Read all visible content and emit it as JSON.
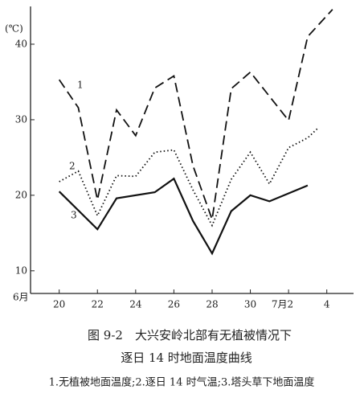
{
  "chart_data": {
    "type": "line",
    "title": "图 9-2　大兴安岭北部有无植被情况下",
    "subtitle": "逐日 14 时地面温度曲线",
    "annotations": [
      "1.无植被地面温度;2.逐日 14 时气温;3.塔头草下地面温度"
    ],
    "y_label": "(℃)",
    "x_label": "6月",
    "xlim": [
      18.5,
      35.4
    ],
    "ylim": [
      7,
      45
    ],
    "xticks": [
      20,
      22,
      24,
      26,
      28,
      30,
      {
        "value": 32,
        "label": "7月2"
      },
      {
        "value": 34,
        "label": "4"
      }
    ],
    "yticks": [
      10,
      20,
      30,
      40
    ],
    "series": [
      {
        "name": "1",
        "color": "#111",
        "style": "dashed",
        "x": [
          20,
          21,
          22,
          23,
          24,
          25,
          26,
          27,
          28,
          29,
          30,
          31,
          32,
          33,
          34.3
        ],
        "values": [
          35.3,
          31.6,
          19.4,
          31.3,
          27.9,
          34.2,
          35.8,
          23.9,
          16.8,
          34.1,
          36.3,
          33.1,
          29.9,
          41,
          44.6
        ]
      },
      {
        "name": "2",
        "color": "#111",
        "style": "dotted",
        "x": [
          20,
          21,
          22,
          23,
          24,
          25,
          26,
          27,
          28,
          29,
          30,
          31,
          32,
          33,
          33.5
        ],
        "values": [
          21.8,
          23.2,
          17.3,
          22.6,
          22.5,
          25.7,
          26,
          20.7,
          16,
          22.1,
          25.7,
          21.5,
          26.3,
          27.6,
          28.8
        ]
      },
      {
        "name": "3",
        "color": "#111",
        "style": "solid",
        "x": [
          20,
          22,
          23,
          25,
          26,
          27,
          28,
          29,
          30,
          31,
          33
        ],
        "values": [
          20.5,
          15.5,
          19.6,
          20.4,
          22.2,
          16.6,
          12.3,
          17.9,
          20,
          19.2,
          21.3
        ]
      }
    ]
  }
}
